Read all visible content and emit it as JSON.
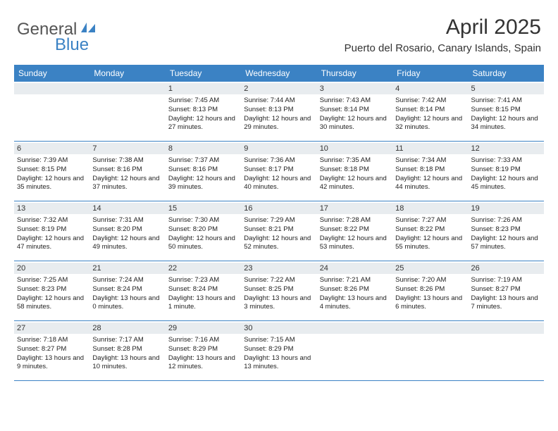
{
  "logo": {
    "text1": "General",
    "text2": "Blue"
  },
  "title": "April 2025",
  "location": "Puerto del Rosario, Canary Islands, Spain",
  "colors": {
    "header_bg": "#3b82c4",
    "daynum_bg": "#e8ecef",
    "border": "#3b82c4",
    "text": "#222222"
  },
  "day_names": [
    "Sunday",
    "Monday",
    "Tuesday",
    "Wednesday",
    "Thursday",
    "Friday",
    "Saturday"
  ],
  "weeks": [
    [
      null,
      null,
      {
        "n": "1",
        "sr": "7:45 AM",
        "ss": "8:13 PM",
        "dl": "12 hours and 27 minutes."
      },
      {
        "n": "2",
        "sr": "7:44 AM",
        "ss": "8:13 PM",
        "dl": "12 hours and 29 minutes."
      },
      {
        "n": "3",
        "sr": "7:43 AM",
        "ss": "8:14 PM",
        "dl": "12 hours and 30 minutes."
      },
      {
        "n": "4",
        "sr": "7:42 AM",
        "ss": "8:14 PM",
        "dl": "12 hours and 32 minutes."
      },
      {
        "n": "5",
        "sr": "7:41 AM",
        "ss": "8:15 PM",
        "dl": "12 hours and 34 minutes."
      }
    ],
    [
      {
        "n": "6",
        "sr": "7:39 AM",
        "ss": "8:15 PM",
        "dl": "12 hours and 35 minutes."
      },
      {
        "n": "7",
        "sr": "7:38 AM",
        "ss": "8:16 PM",
        "dl": "12 hours and 37 minutes."
      },
      {
        "n": "8",
        "sr": "7:37 AM",
        "ss": "8:16 PM",
        "dl": "12 hours and 39 minutes."
      },
      {
        "n": "9",
        "sr": "7:36 AM",
        "ss": "8:17 PM",
        "dl": "12 hours and 40 minutes."
      },
      {
        "n": "10",
        "sr": "7:35 AM",
        "ss": "8:18 PM",
        "dl": "12 hours and 42 minutes."
      },
      {
        "n": "11",
        "sr": "7:34 AM",
        "ss": "8:18 PM",
        "dl": "12 hours and 44 minutes."
      },
      {
        "n": "12",
        "sr": "7:33 AM",
        "ss": "8:19 PM",
        "dl": "12 hours and 45 minutes."
      }
    ],
    [
      {
        "n": "13",
        "sr": "7:32 AM",
        "ss": "8:19 PM",
        "dl": "12 hours and 47 minutes."
      },
      {
        "n": "14",
        "sr": "7:31 AM",
        "ss": "8:20 PM",
        "dl": "12 hours and 49 minutes."
      },
      {
        "n": "15",
        "sr": "7:30 AM",
        "ss": "8:20 PM",
        "dl": "12 hours and 50 minutes."
      },
      {
        "n": "16",
        "sr": "7:29 AM",
        "ss": "8:21 PM",
        "dl": "12 hours and 52 minutes."
      },
      {
        "n": "17",
        "sr": "7:28 AM",
        "ss": "8:22 PM",
        "dl": "12 hours and 53 minutes."
      },
      {
        "n": "18",
        "sr": "7:27 AM",
        "ss": "8:22 PM",
        "dl": "12 hours and 55 minutes."
      },
      {
        "n": "19",
        "sr": "7:26 AM",
        "ss": "8:23 PM",
        "dl": "12 hours and 57 minutes."
      }
    ],
    [
      {
        "n": "20",
        "sr": "7:25 AM",
        "ss": "8:23 PM",
        "dl": "12 hours and 58 minutes."
      },
      {
        "n": "21",
        "sr": "7:24 AM",
        "ss": "8:24 PM",
        "dl": "13 hours and 0 minutes."
      },
      {
        "n": "22",
        "sr": "7:23 AM",
        "ss": "8:24 PM",
        "dl": "13 hours and 1 minute."
      },
      {
        "n": "23",
        "sr": "7:22 AM",
        "ss": "8:25 PM",
        "dl": "13 hours and 3 minutes."
      },
      {
        "n": "24",
        "sr": "7:21 AM",
        "ss": "8:26 PM",
        "dl": "13 hours and 4 minutes."
      },
      {
        "n": "25",
        "sr": "7:20 AM",
        "ss": "8:26 PM",
        "dl": "13 hours and 6 minutes."
      },
      {
        "n": "26",
        "sr": "7:19 AM",
        "ss": "8:27 PM",
        "dl": "13 hours and 7 minutes."
      }
    ],
    [
      {
        "n": "27",
        "sr": "7:18 AM",
        "ss": "8:27 PM",
        "dl": "13 hours and 9 minutes."
      },
      {
        "n": "28",
        "sr": "7:17 AM",
        "ss": "8:28 PM",
        "dl": "13 hours and 10 minutes."
      },
      {
        "n": "29",
        "sr": "7:16 AM",
        "ss": "8:29 PM",
        "dl": "13 hours and 12 minutes."
      },
      {
        "n": "30",
        "sr": "7:15 AM",
        "ss": "8:29 PM",
        "dl": "13 hours and 13 minutes."
      },
      null,
      null,
      null
    ]
  ],
  "labels": {
    "sunrise": "Sunrise:",
    "sunset": "Sunset:",
    "daylight": "Daylight:"
  }
}
